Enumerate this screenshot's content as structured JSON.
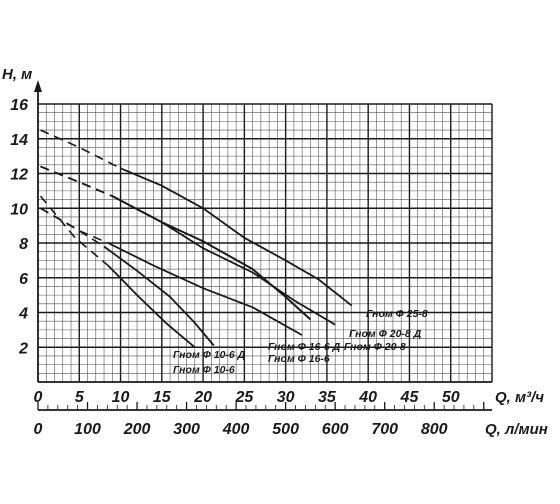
{
  "chart_data": {
    "type": "line",
    "title": "",
    "ylabel": "H, м",
    "xlabel": "Q, м³/ч",
    "x2label": "Q, л/мин",
    "xlim": [
      0,
      55
    ],
    "ylim": [
      0,
      16
    ],
    "x2lim": [
      0,
      916.7
    ],
    "grid": true,
    "x_ticks": [
      "0",
      "5",
      "10",
      "15",
      "20",
      "25",
      "30",
      "35",
      "40",
      "45",
      "50"
    ],
    "x2_ticks": [
      "0",
      "100",
      "200",
      "300",
      "400",
      "500",
      "600",
      "700",
      "800"
    ],
    "y_ticks": [
      "2",
      "4",
      "6",
      "8",
      "10",
      "12",
      "14",
      "16"
    ],
    "series": [
      {
        "name": "Гном Ф 10-6 Д",
        "dashed_points": [
          [
            0.3,
            10.7
          ],
          [
            4.5,
            8.3
          ],
          [
            8.5,
            6.7
          ]
        ],
        "solid_points": [
          [
            8.5,
            6.7
          ],
          [
            12.0,
            5.0
          ],
          [
            15.5,
            3.4
          ],
          [
            19.0,
            2.0
          ]
        ]
      },
      {
        "name": "Гном Ф 10-6",
        "dashed_points": [
          [
            0.3,
            10.0
          ],
          [
            4.0,
            9.0
          ],
          [
            8.0,
            7.8
          ]
        ],
        "solid_points": [
          [
            8.0,
            7.8
          ],
          [
            12.0,
            6.4
          ],
          [
            16.0,
            4.9
          ],
          [
            19.0,
            3.4
          ],
          [
            21.3,
            2.1
          ]
        ]
      },
      {
        "name": "Гном Ф 16-6 Д",
        "dashed_points": [
          [
            0.3,
            10.0
          ],
          [
            5.0,
            8.7
          ],
          [
            8.5,
            8.0
          ]
        ],
        "solid_points": [
          [
            8.5,
            8.0
          ],
          [
            14.0,
            6.7
          ],
          [
            20.0,
            5.4
          ],
          [
            26.0,
            4.3
          ],
          [
            32.0,
            2.7
          ]
        ]
      },
      {
        "name": "Гном Ф 16-6",
        "dashed_points": [
          [
            0.3,
            12.4
          ],
          [
            5.0,
            11.5
          ],
          [
            9.0,
            10.7
          ]
        ],
        "solid_points": [
          [
            9.0,
            10.7
          ],
          [
            15.0,
            9.2
          ],
          [
            20.0,
            8.1
          ],
          [
            26.0,
            6.5
          ],
          [
            30.0,
            4.9
          ],
          [
            33.0,
            3.6
          ]
        ]
      },
      {
        "name": "Гном Ф 20-8 Д",
        "dashed_points": [
          [
            0.3,
            12.4
          ],
          [
            5.0,
            11.5
          ],
          [
            9.0,
            10.7
          ]
        ],
        "solid_points": [
          [
            9.0,
            10.7
          ],
          [
            15.0,
            9.2
          ],
          [
            20.0,
            8.1
          ],
          [
            26.0,
            6.5
          ],
          [
            30.0,
            4.9
          ],
          [
            33.0,
            3.6
          ]
        ]
      },
      {
        "name": "Гном Ф 20-8",
        "dashed_points": [
          [
            0.3,
            12.4
          ],
          [
            5.0,
            11.5
          ],
          [
            9.0,
            10.7
          ]
        ],
        "solid_points": [
          [
            9.0,
            10.7
          ],
          [
            15.0,
            9.2
          ],
          [
            20.0,
            7.7
          ],
          [
            26.0,
            6.3
          ],
          [
            31.0,
            4.7
          ],
          [
            36.0,
            3.3
          ]
        ]
      },
      {
        "name": "Гном Ф 25-8",
        "dashed_points": [
          [
            0.3,
            14.5
          ],
          [
            5.0,
            13.5
          ],
          [
            10.0,
            12.3
          ]
        ],
        "solid_points": [
          [
            10.0,
            12.3
          ],
          [
            15.0,
            11.3
          ],
          [
            20.0,
            10.0
          ],
          [
            25.0,
            8.3
          ],
          [
            30.0,
            7.0
          ],
          [
            34.0,
            5.9
          ],
          [
            38.0,
            4.4
          ]
        ]
      }
    ],
    "annotations": [
      "Гном Ф 25-8",
      "Гном Ф 20-8 Д",
      "Гном Ф 16-6 Д",
      "Гном Ф 20-8",
      "Гном Ф 16-6",
      "Гном Ф 10-6 Д",
      "Гном Ф 10-6"
    ]
  }
}
